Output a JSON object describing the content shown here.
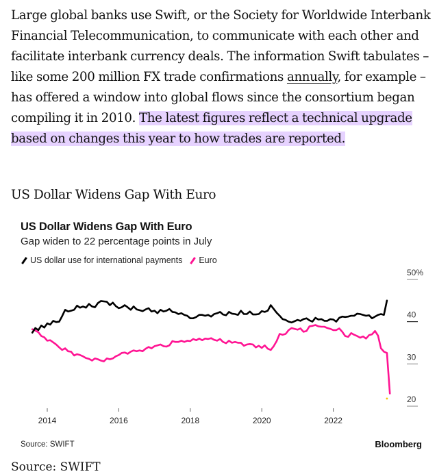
{
  "article": {
    "para_before_link": "Large global banks use Swift, or the Society for Worldwide Interbank Financial Telecommunication, to communicate with each other and facilitate interbank currency deals. The information Swift tabulates – like some 200 million FX trade confirmations ",
    "link_text": "annually",
    "para_after_link": ", for example – has offered a window into global flows since the consortium began compiling it in 2010. ",
    "highlighted_text": "The latest figures reflect a technical upgrade based on changes this year to how trades are reported."
  },
  "chart_heading": "US Dollar Widens Gap With Euro",
  "source_line": "Source: SWIFT",
  "colors": {
    "usd": "#000000",
    "euro": "#ff1493",
    "highlight": "#e6d2ff",
    "marker": "#f5c400"
  },
  "chart_data": {
    "type": "line",
    "title": "US Dollar Widens Gap With Euro",
    "subtitle": "Gap widen to 22 percentage points in July",
    "xlabel": "",
    "ylabel": "",
    "x_range": [
      "2013-08",
      "2023-07"
    ],
    "x_ticks": [
      "2014",
      "2016",
      "2018",
      "2020",
      "2022"
    ],
    "y_ticks": [
      "50%",
      "40",
      "30",
      "20"
    ],
    "ylim": [
      20,
      50
    ],
    "grid": false,
    "legend_position": "top-left",
    "source": "Source: SWIFT",
    "brand": "Bloomberg",
    "series": [
      {
        "name": "US dollar use for international payments",
        "start": "2013-08",
        "values": [
          37.4,
          38.5,
          38.0,
          39.1,
          38.6,
          39.6,
          39.3,
          40.2,
          39.9,
          40.0,
          41.3,
          42.8,
          42.4,
          42.6,
          42.8,
          43.8,
          43.3,
          43.6,
          43.3,
          44.2,
          43.6,
          43.4,
          44.4,
          44.9,
          44.8,
          44.7,
          43.9,
          44.5,
          43.7,
          43.2,
          43.4,
          43.9,
          43.4,
          42.8,
          43.6,
          42.9,
          42.7,
          42.5,
          42.9,
          43.2,
          42.4,
          42.6,
          42.0,
          42.8,
          42.4,
          42.6,
          43.0,
          42.3,
          42.2,
          41.8,
          42.0,
          41.6,
          41.4,
          40.8,
          40.8,
          41.1,
          41.6,
          41.6,
          41.4,
          41.6,
          41.2,
          41.8,
          42.0,
          42.3,
          41.7,
          41.5,
          42.3,
          41.9,
          41.8,
          41.6,
          42.6,
          41.8,
          41.8,
          42.4,
          41.7,
          41.7,
          41.8,
          42.5,
          42.3,
          42.6,
          43.9,
          43.0,
          42.1,
          41.4,
          40.6,
          40.4,
          40.0,
          39.8,
          40.1,
          40.4,
          40.2,
          40.6,
          40.8,
          40.3,
          40.0,
          40.9,
          40.5,
          40.6,
          40.2,
          40.2,
          40.6,
          40.5,
          40.0,
          40.9,
          41.2,
          41.1,
          41.2,
          41.4,
          41.4,
          41.9,
          41.8,
          41.6,
          41.4,
          41.5,
          40.8,
          41.2,
          41.6,
          41.8,
          41.6,
          45.0
        ]
      },
      {
        "name": "Euro",
        "start": "2013-08",
        "values": [
          38.2,
          37.9,
          37.5,
          36.6,
          36.3,
          35.5,
          35.6,
          35.1,
          34.6,
          33.9,
          33.3,
          33.7,
          33.0,
          32.9,
          32.0,
          32.3,
          32.1,
          31.8,
          31.4,
          31.2,
          30.8,
          31.3,
          31.1,
          30.8,
          30.6,
          31.3,
          31.1,
          31.3,
          31.8,
          32.1,
          32.6,
          32.7,
          32.4,
          32.9,
          33.2,
          33.0,
          33.2,
          33.0,
          33.6,
          34.0,
          33.7,
          34.2,
          34.4,
          34.6,
          34.2,
          34.1,
          34.4,
          35.4,
          35.2,
          35.2,
          35.5,
          35.2,
          35.5,
          35.4,
          35.9,
          35.6,
          36.0,
          35.6,
          36.0,
          35.9,
          36.1,
          35.7,
          35.5,
          35.9,
          35.2,
          34.9,
          35.5,
          35.0,
          35.2,
          35.0,
          35.0,
          34.3,
          34.6,
          34.7,
          34.6,
          33.9,
          34.3,
          33.8,
          34.4,
          33.6,
          33.3,
          34.2,
          35.4,
          37.1,
          36.9,
          37.1,
          38.0,
          38.5,
          38.3,
          38.1,
          38.4,
          37.6,
          37.8,
          38.9,
          39.0,
          39.2,
          38.9,
          38.8,
          38.8,
          38.5,
          38.3,
          38.0,
          38.0,
          38.4,
          37.6,
          36.6,
          36.4,
          37.3,
          36.9,
          36.6,
          36.2,
          36.5,
          36.0,
          36.8,
          37.0,
          37.8,
          36.7,
          33.7,
          32.9,
          32.6,
          23.0
        ]
      }
    ],
    "annotations": [
      {
        "type": "point-marker",
        "x": "2023-07",
        "y": 21.8
      }
    ]
  }
}
